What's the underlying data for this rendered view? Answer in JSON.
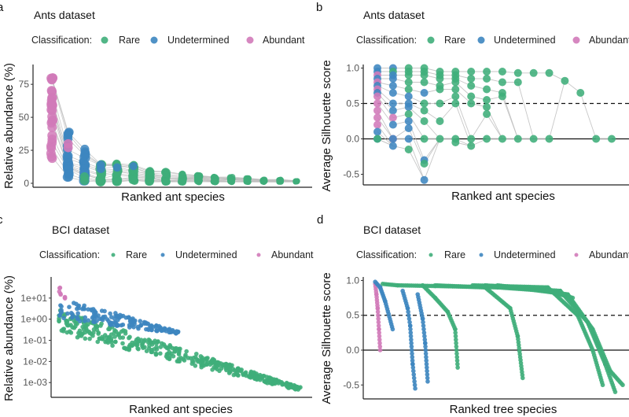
{
  "figure": {
    "legend_title": "Classification:",
    "classes": [
      {
        "key": "rare",
        "label": "Rare",
        "color": "#3fae7a"
      },
      {
        "key": "undetermined",
        "label": "Undetermined",
        "color": "#3d86c0"
      },
      {
        "key": "abundant",
        "label": "Abundant",
        "color": "#d17ab9"
      }
    ],
    "connector_color": "#bdbdbd"
  },
  "chart_data": [
    {
      "panel": "a",
      "type": "scatter",
      "title": "Ants dataset",
      "xlabel": "Ranked ant species",
      "ylabel": "Relative abundance (%)",
      "ylim": [
        -3,
        90
      ],
      "yticks": [
        0,
        25,
        50,
        75
      ],
      "ytick_labels": [
        "0",
        "25",
        "50",
        "75"
      ],
      "x_scale": "categorical-rank",
      "note": "Each rank column shows one point per sample; grey lines connect the same sample across ranks",
      "columns": [
        {
          "rank": 1,
          "class": "abundant",
          "min": 19,
          "max": 87
        },
        {
          "rank": 2,
          "class": "undetermined",
          "min": 4,
          "max": 42,
          "abundant_points": [
            27,
            30
          ]
        },
        {
          "rank": 3,
          "class": "undetermined",
          "min": 1,
          "max": 26,
          "rare_points": [
            2,
            5
          ]
        },
        {
          "rank": 4,
          "class": "rare",
          "min": 1,
          "max": 16,
          "undetermined_points": [
            11,
            14
          ]
        },
        {
          "rank": 5,
          "class": "rare",
          "min": 1,
          "max": 15,
          "undetermined_points": [
            12
          ]
        },
        {
          "rank": 6,
          "class": "rare",
          "min": 1,
          "max": 14,
          "undetermined_points": [
            13
          ]
        },
        {
          "rank": 7,
          "class": "rare",
          "min": 1,
          "max": 10
        },
        {
          "rank": 8,
          "class": "rare",
          "min": 1,
          "max": 9
        },
        {
          "rank": 9,
          "class": "rare",
          "min": 1,
          "max": 7
        },
        {
          "rank": 10,
          "class": "rare",
          "min": 1,
          "max": 6
        },
        {
          "rank": 11,
          "class": "rare",
          "min": 1,
          "max": 5
        },
        {
          "rank": 12,
          "class": "rare",
          "min": 1,
          "max": 5
        },
        {
          "rank": 13,
          "class": "rare",
          "min": 1,
          "max": 4
        },
        {
          "rank": 14,
          "class": "rare",
          "min": 1,
          "max": 3
        },
        {
          "rank": 15,
          "class": "rare",
          "min": 1,
          "max": 3
        },
        {
          "rank": 16,
          "class": "rare",
          "min": 1,
          "max": 2
        }
      ]
    },
    {
      "panel": "b",
      "type": "scatter",
      "title": "Ants dataset",
      "xlabel": "Ranked ant species",
      "ylabel": "Average Silhouette score",
      "ylim": [
        -0.65,
        1.05
      ],
      "yticks": [
        -0.5,
        0.0,
        0.5,
        1.0
      ],
      "ytick_labels": [
        "-0.5",
        "0.0",
        "0.5",
        "1.0"
      ],
      "reference_lines": [
        {
          "y": 0.0,
          "style": "solid"
        },
        {
          "y": 0.5,
          "style": "dashed"
        }
      ],
      "columns": [
        {
          "rank": 1,
          "points": [
            [
              1.0,
              "undetermined"
            ],
            [
              0.95,
              "undetermined"
            ],
            [
              0.9,
              "abundant"
            ],
            [
              0.85,
              "undetermined"
            ],
            [
              0.8,
              "abundant"
            ],
            [
              0.75,
              "undetermined"
            ],
            [
              0.7,
              "abundant"
            ],
            [
              0.65,
              "undetermined"
            ],
            [
              0.6,
              "abundant"
            ],
            [
              0.5,
              "abundant"
            ],
            [
              0.4,
              "abundant"
            ],
            [
              0.3,
              "abundant"
            ],
            [
              0.2,
              "abundant"
            ],
            [
              0.1,
              "undetermined"
            ],
            [
              0.0,
              "undetermined"
            ],
            [
              0.0,
              "rare"
            ]
          ]
        },
        {
          "rank": 2,
          "points": [
            [
              1.0,
              "undetermined"
            ],
            [
              0.95,
              "rare"
            ],
            [
              0.9,
              "undetermined"
            ],
            [
              0.85,
              "undetermined"
            ],
            [
              0.75,
              "undetermined"
            ],
            [
              0.65,
              "undetermined"
            ],
            [
              0.5,
              "undetermined"
            ],
            [
              0.4,
              "undetermined"
            ],
            [
              0.3,
              "abundant"
            ],
            [
              0.2,
              "undetermined"
            ],
            [
              0.0,
              "abundant"
            ],
            [
              0.0,
              "undetermined"
            ],
            [
              -0.1,
              "undetermined"
            ]
          ]
        },
        {
          "rank": 3,
          "points": [
            [
              1.0,
              "rare"
            ],
            [
              0.95,
              "rare"
            ],
            [
              0.9,
              "rare"
            ],
            [
              0.8,
              "rare"
            ],
            [
              0.7,
              "rare"
            ],
            [
              0.6,
              "undetermined"
            ],
            [
              0.5,
              "undetermined"
            ],
            [
              0.45,
              "undetermined"
            ],
            [
              0.35,
              "rare"
            ],
            [
              0.25,
              "undetermined"
            ],
            [
              0.15,
              "undetermined"
            ],
            [
              0.0,
              "undetermined"
            ],
            [
              -0.15,
              "rare"
            ]
          ]
        },
        {
          "rank": 4,
          "points": [
            [
              1.0,
              "rare"
            ],
            [
              0.95,
              "rare"
            ],
            [
              0.9,
              "rare"
            ],
            [
              0.8,
              "rare"
            ],
            [
              0.65,
              "undetermined"
            ],
            [
              0.5,
              "rare"
            ],
            [
              0.4,
              "rare"
            ],
            [
              0.25,
              "rare"
            ],
            [
              0.0,
              "rare"
            ],
            [
              -0.3,
              "undetermined"
            ],
            [
              -0.35,
              "rare"
            ],
            [
              -0.58,
              "undetermined"
            ]
          ]
        },
        {
          "rank": 5,
          "points": [
            [
              0.95,
              "rare"
            ],
            [
              0.9,
              "rare"
            ],
            [
              0.85,
              "rare"
            ],
            [
              0.75,
              "rare"
            ],
            [
              0.7,
              "rare"
            ],
            [
              0.5,
              "rare"
            ],
            [
              0.25,
              "rare"
            ],
            [
              0.0,
              "rare"
            ]
          ]
        },
        {
          "rank": 6,
          "points": [
            [
              0.95,
              "rare"
            ],
            [
              0.9,
              "rare"
            ],
            [
              0.85,
              "rare"
            ],
            [
              0.8,
              "rare"
            ],
            [
              0.7,
              "rare"
            ],
            [
              0.6,
              "rare"
            ],
            [
              0.5,
              "rare"
            ],
            [
              0.0,
              "rare"
            ],
            [
              -0.05,
              "rare"
            ]
          ]
        },
        {
          "rank": 7,
          "points": [
            [
              0.95,
              "rare"
            ],
            [
              0.85,
              "rare"
            ],
            [
              0.75,
              "rare"
            ],
            [
              0.6,
              "rare"
            ],
            [
              0.5,
              "rare"
            ],
            [
              0.0,
              "rare"
            ],
            [
              -0.1,
              "rare"
            ]
          ]
        },
        {
          "rank": 8,
          "points": [
            [
              0.95,
              "rare"
            ],
            [
              0.85,
              "rare"
            ],
            [
              0.7,
              "rare"
            ],
            [
              0.55,
              "rare"
            ],
            [
              0.45,
              "rare"
            ],
            [
              0.35,
              "rare"
            ],
            [
              0.0,
              "rare"
            ]
          ]
        },
        {
          "rank": 9,
          "points": [
            [
              0.95,
              "rare"
            ],
            [
              0.8,
              "rare"
            ],
            [
              0.65,
              "rare"
            ],
            [
              0.6,
              "rare"
            ],
            [
              0.0,
              "rare"
            ]
          ]
        },
        {
          "rank": 10,
          "points": [
            [
              0.93,
              "rare"
            ],
            [
              0.8,
              "rare"
            ],
            [
              0.0,
              "rare"
            ]
          ]
        },
        {
          "rank": 11,
          "points": [
            [
              0.93,
              "rare"
            ],
            [
              0.0,
              "rare"
            ]
          ]
        },
        {
          "rank": 12,
          "points": [
            [
              0.93,
              "rare"
            ],
            [
              0.0,
              "rare"
            ]
          ]
        },
        {
          "rank": 13,
          "points": [
            [
              0.82,
              "rare"
            ]
          ]
        },
        {
          "rank": 14,
          "points": [
            [
              0.65,
              "rare"
            ]
          ]
        },
        {
          "rank": 15,
          "points": [
            [
              0.0,
              "rare"
            ]
          ]
        },
        {
          "rank": 16,
          "points": [
            [
              0.0,
              "rare"
            ]
          ]
        }
      ]
    },
    {
      "panel": "c",
      "type": "scatter",
      "title": "BCI dataset",
      "xlabel": "Ranked ant species",
      "ylabel": "Relative abundance (%)",
      "y_scale": "log10",
      "ylim": [
        0.0002,
        100
      ],
      "yticks": [
        0.001,
        0.01,
        0.1,
        1,
        10
      ],
      "ytick_labels": [
        "1e-03",
        "1e-02",
        "1e-01",
        "1e+00",
        "1e+01"
      ],
      "bands": [
        {
          "class": "abundant",
          "x_range": [
            0.0,
            0.03
          ],
          "y_upper": [
            60,
            8
          ],
          "y_lower": [
            15,
            8
          ]
        },
        {
          "class": "undetermined",
          "x_range": [
            0.0,
            0.5
          ],
          "y_upper": [
            12,
            0.25
          ],
          "y_lower": [
            1.0,
            0.2
          ]
        },
        {
          "class": "rare",
          "x_range": [
            0.0,
            1.0
          ],
          "y_upper": [
            3,
            0.0006
          ],
          "y_lower": [
            0.22,
            0.0004
          ]
        }
      ]
    },
    {
      "panel": "d",
      "type": "scatter",
      "title": "BCI dataset",
      "xlabel": "Ranked tree species",
      "ylabel": "Average Silhouette score",
      "ylim": [
        -0.7,
        1.05
      ],
      "yticks": [
        -0.5,
        0.0,
        0.5,
        1.0
      ],
      "ytick_labels": [
        "-0.5",
        "0.0",
        "0.5",
        "1.0"
      ],
      "reference_lines": [
        {
          "y": 0.0,
          "style": "solid"
        },
        {
          "y": 0.5,
          "style": "dashed"
        }
      ],
      "traces": [
        {
          "class": "abundant",
          "x": [
            0.01,
            0.015,
            0.02,
            0.025,
            0.03
          ],
          "y": [
            0.95,
            0.8,
            0.6,
            0.3,
            0.0
          ]
        },
        {
          "class": "undetermined",
          "x": [
            0.01,
            0.03,
            0.05,
            0.08
          ],
          "y": [
            0.98,
            0.9,
            0.7,
            0.3
          ]
        },
        {
          "class": "rare",
          "x": [
            0.04,
            0.1,
            0.25,
            0.5,
            0.7,
            0.8
          ],
          "y": [
            0.95,
            0.93,
            0.92,
            0.9,
            0.85,
            0.75
          ]
        },
        {
          "class": "undetermined",
          "x": [
            0.12,
            0.14,
            0.15,
            0.16,
            0.17
          ],
          "y": [
            0.85,
            0.6,
            0.35,
            -0.2,
            -0.55
          ]
        },
        {
          "class": "undetermined",
          "x": [
            0.18,
            0.2,
            0.21,
            0.22
          ],
          "y": [
            0.8,
            0.45,
            0.1,
            -0.45
          ]
        },
        {
          "class": "rare",
          "x": [
            0.2,
            0.25,
            0.3,
            0.33,
            0.34
          ],
          "y": [
            0.93,
            0.75,
            0.55,
            0.3,
            -0.25
          ]
        },
        {
          "class": "rare",
          "x": [
            0.25,
            0.45,
            0.55,
            0.58,
            0.6
          ],
          "y": [
            0.93,
            0.9,
            0.6,
            0.2,
            -0.4
          ]
        },
        {
          "class": "rare",
          "x": [
            0.4,
            0.7,
            0.82,
            0.88,
            0.92
          ],
          "y": [
            0.93,
            0.9,
            0.5,
            0.0,
            -0.5
          ]
        },
        {
          "class": "rare",
          "x": [
            0.45,
            0.75,
            0.86,
            0.93,
            0.97
          ],
          "y": [
            0.93,
            0.85,
            0.4,
            -0.2,
            -0.6
          ]
        },
        {
          "class": "rare",
          "x": [
            0.5,
            0.78,
            0.88,
            0.95,
            1.0
          ],
          "y": [
            0.93,
            0.8,
            0.3,
            -0.3,
            -0.5
          ]
        }
      ]
    }
  ]
}
